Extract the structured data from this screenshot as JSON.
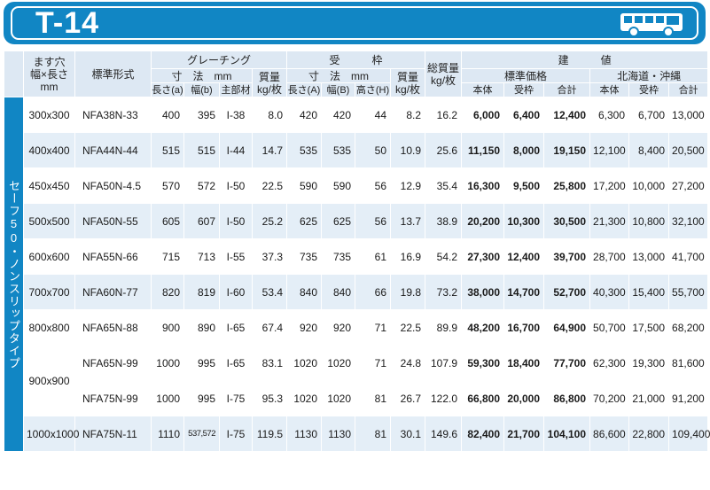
{
  "page": {
    "title": "T-14",
    "icon": "bus-icon"
  },
  "colors": {
    "accent": "#1186c4",
    "header_bg": "#dde8f3",
    "row_alt": "#e4eef7"
  },
  "headers": {
    "opening_line1": "ます穴",
    "opening_line2": "幅×長さ",
    "opening_line3": "mm",
    "model": "標準形式",
    "grating": "グレーチング",
    "grating_dims": "寸　法　mm",
    "grating_weight": "質量",
    "grating_weight_unit": "kg/枚",
    "grating_length": "長さ(a)",
    "grating_width": "幅(b)",
    "grating_main": "主部材",
    "frame": "受　　　枠",
    "frame_dims": "寸　法　mm",
    "frame_weight": "質量",
    "frame_weight_unit": "kg/枚",
    "frame_length": "長さ(A)",
    "frame_width": "幅(B)",
    "frame_height": "高さ(H)",
    "total_weight_line1": "総質量",
    "total_weight_line2": "kg/枚",
    "price": "建　　　値",
    "std_price": "標準価格",
    "hokkaido_price": "北海道・沖縄",
    "body": "本体",
    "frame_col": "受枠",
    "total": "合計",
    "body2": "本体",
    "frame_col2": "受枠",
    "total2": "合計"
  },
  "side_label": "セーフ50・ノンスリップタイプ",
  "rows": [
    {
      "size": "300x300",
      "model": "NFA38N-33",
      "ga": "400",
      "gb": "395",
      "gm": "I-38",
      "gw": "8.0",
      "fa": "420",
      "fb": "420",
      "fh": "44",
      "fw": "8.2",
      "tw": "16.2",
      "sb": "6,000",
      "sf": "6,400",
      "st": "12,400",
      "hb": "6,300",
      "hf": "6,700",
      "ht": "13,000"
    },
    {
      "size": "400x400",
      "model": "NFA44N-44",
      "ga": "515",
      "gb": "515",
      "gm": "I-44",
      "gw": "14.7",
      "fa": "535",
      "fb": "535",
      "fh": "50",
      "fw": "10.9",
      "tw": "25.6",
      "sb": "11,150",
      "sf": "8,000",
      "st": "19,150",
      "hb": "12,100",
      "hf": "8,400",
      "ht": "20,500"
    },
    {
      "size": "450x450",
      "model": "NFA50N-4.5",
      "ga": "570",
      "gb": "572",
      "gm": "I-50",
      "gw": "22.5",
      "fa": "590",
      "fb": "590",
      "fh": "56",
      "fw": "12.9",
      "tw": "35.4",
      "sb": "16,300",
      "sf": "9,500",
      "st": "25,800",
      "hb": "17,200",
      "hf": "10,000",
      "ht": "27,200"
    },
    {
      "size": "500x500",
      "model": "NFA50N-55",
      "ga": "605",
      "gb": "607",
      "gm": "I-50",
      "gw": "25.2",
      "fa": "625",
      "fb": "625",
      "fh": "56",
      "fw": "13.7",
      "tw": "38.9",
      "sb": "20,200",
      "sf": "10,300",
      "st": "30,500",
      "hb": "21,300",
      "hf": "10,800",
      "ht": "32,100"
    },
    {
      "size": "600x600",
      "model": "NFA55N-66",
      "ga": "715",
      "gb": "713",
      "gm": "I-55",
      "gw": "37.3",
      "fa": "735",
      "fb": "735",
      "fh": "61",
      "fw": "16.9",
      "tw": "54.2",
      "sb": "27,300",
      "sf": "12,400",
      "st": "39,700",
      "hb": "28,700",
      "hf": "13,000",
      "ht": "41,700"
    },
    {
      "size": "700x700",
      "model": "NFA60N-77",
      "ga": "820",
      "gb": "819",
      "gm": "I-60",
      "gw": "53.4",
      "fa": "840",
      "fb": "840",
      "fh": "66",
      "fw": "19.8",
      "tw": "73.2",
      "sb": "38,000",
      "sf": "14,700",
      "st": "52,700",
      "hb": "40,300",
      "hf": "15,400",
      "ht": "55,700"
    },
    {
      "size": "800x800",
      "model": "NFA65N-88",
      "ga": "900",
      "gb": "890",
      "gm": "I-65",
      "gw": "67.4",
      "fa": "920",
      "fb": "920",
      "fh": "71",
      "fw": "22.5",
      "tw": "89.9",
      "sb": "48,200",
      "sf": "16,700",
      "st": "64,900",
      "hb": "50,700",
      "hf": "17,500",
      "ht": "68,200"
    },
    {
      "size": "900x900",
      "model": "NFA65N-99",
      "ga": "1000",
      "gb": "995",
      "gm": "I-65",
      "gw": "83.1",
      "fa": "1020",
      "fb": "1020",
      "fh": "71",
      "fw": "24.8",
      "tw": "107.9",
      "sb": "59,300",
      "sf": "18,400",
      "st": "77,700",
      "hb": "62,300",
      "hf": "19,300",
      "ht": "81,600"
    },
    {
      "size": "",
      "model": "NFA75N-99",
      "ga": "1000",
      "gb": "995",
      "gm": "I-75",
      "gw": "95.3",
      "fa": "1020",
      "fb": "1020",
      "fh": "81",
      "fw": "26.7",
      "tw": "122.0",
      "sb": "66,800",
      "sf": "20,000",
      "st": "86,800",
      "hb": "70,200",
      "hf": "21,000",
      "ht": "91,200"
    },
    {
      "size": "1000x1000",
      "model": "NFA75N-11",
      "ga": "1110",
      "gb": "537,572",
      "gm": "I-75",
      "gw": "119.5",
      "fa": "1130",
      "fb": "1130",
      "fh": "81",
      "fw": "30.1",
      "tw": "149.6",
      "sb": "82,400",
      "sf": "21,700",
      "st": "104,100",
      "hb": "86,600",
      "hf": "22,800",
      "ht": "109,400"
    }
  ]
}
